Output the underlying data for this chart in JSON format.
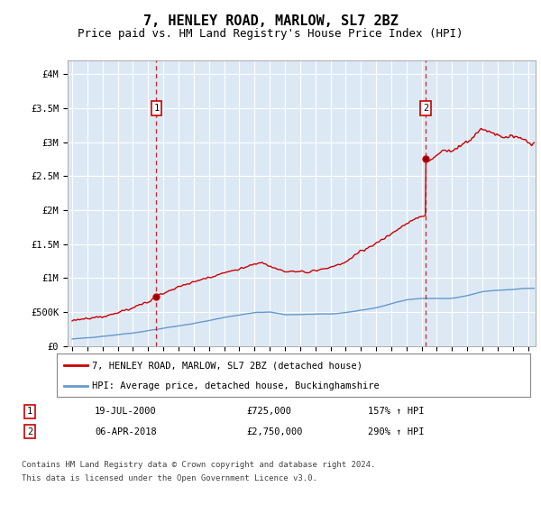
{
  "title": "7, HENLEY ROAD, MARLOW, SL7 2BZ",
  "subtitle": "Price paid vs. HM Land Registry's House Price Index (HPI)",
  "title_fontsize": 11,
  "subtitle_fontsize": 9,
  "background_color": "#ffffff",
  "plot_background": "#dce9f5",
  "grid_color": "#ffffff",
  "ylabel_ticks": [
    "£0",
    "£500K",
    "£1M",
    "£1.5M",
    "£2M",
    "£2.5M",
    "£3M",
    "£3.5M",
    "£4M"
  ],
  "ylabel_values": [
    0,
    500000,
    1000000,
    1500000,
    2000000,
    2500000,
    3000000,
    3500000,
    4000000
  ],
  "ylim": [
    0,
    4200000
  ],
  "xlim_start": 1994.7,
  "xlim_end": 2025.5,
  "sale1_date": 2000.54,
  "sale1_price": 725000,
  "sale1_label": "1",
  "sale1_date_str": "19-JUL-2000",
  "sale1_price_str": "£725,000",
  "sale1_hpi_str": "157% ↑ HPI",
  "sale2_date": 2018.26,
  "sale2_price": 2750000,
  "sale2_label": "2",
  "sale2_date_str": "06-APR-2018",
  "sale2_price_str": "£2,750,000",
  "sale2_hpi_str": "290% ↑ HPI",
  "legend_line1": "7, HENLEY ROAD, MARLOW, SL7 2BZ (detached house)",
  "legend_line2": "HPI: Average price, detached house, Buckinghamshire",
  "footer1": "Contains HM Land Registry data © Crown copyright and database right 2024.",
  "footer2": "This data is licensed under the Open Government Licence v3.0.",
  "red_line_color": "#cc0000",
  "blue_line_color": "#6699cc",
  "marker_box_color": "#cc0000",
  "dashed_line_color": "#cc0000"
}
